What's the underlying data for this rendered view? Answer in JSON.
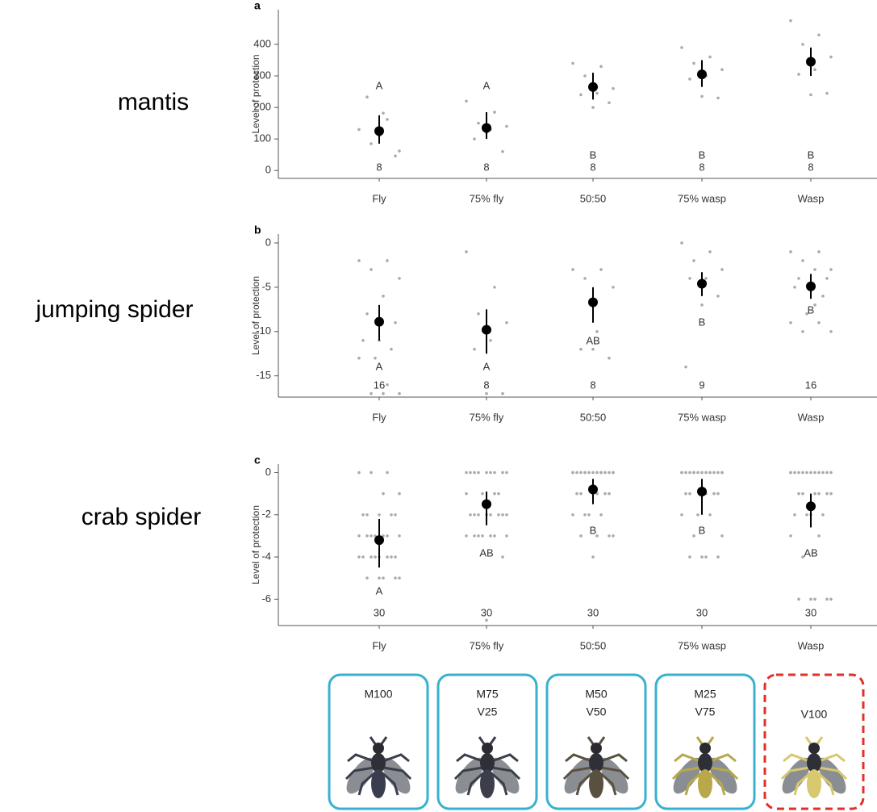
{
  "chart_data": [
    {
      "type": "dot-error",
      "panel": "a",
      "row_label": "mantis",
      "ylabel": "Level of protection",
      "categories": [
        "Fly",
        "75% fly",
        "50:50",
        "75% wasp",
        "Wasp"
      ],
      "means": [
        125,
        135,
        265,
        305,
        345
      ],
      "ci_low": [
        85,
        100,
        225,
        265,
        300
      ],
      "ci_high": [
        175,
        185,
        310,
        350,
        390
      ],
      "letters": [
        "A",
        "A",
        "B",
        "B",
        "B"
      ],
      "n": [
        "8",
        "8",
        "8",
        "8",
        "8"
      ],
      "points": [
        [
          130,
          162,
          85,
          62,
          182,
          233,
          46,
          110
        ],
        [
          220,
          185,
          150,
          140,
          130,
          100,
          60,
          120
        ],
        [
          340,
          330,
          300,
          260,
          245,
          240,
          215,
          200
        ],
        [
          390,
          360,
          340,
          320,
          300,
          290,
          230,
          235
        ],
        [
          475,
          430,
          400,
          360,
          320,
          305,
          245,
          240
        ]
      ],
      "ylim": [
        -25,
        510
      ],
      "yticks": [
        0,
        100,
        200,
        300,
        400
      ]
    },
    {
      "type": "dot-error",
      "panel": "b",
      "row_label": "jumping spider",
      "ylabel": "Level of protection",
      "categories": [
        "Fly",
        "75% fly",
        "50:50",
        "75% wasp",
        "Wasp"
      ],
      "means": [
        -8.9,
        -9.8,
        -6.7,
        -4.6,
        -4.9
      ],
      "ci_low": [
        -11,
        -12.5,
        -9,
        -6,
        -6.3
      ],
      "ci_high": [
        -7,
        -7.5,
        -5,
        -3.3,
        -3.5
      ],
      "letters": [
        "A",
        "A",
        "AB",
        "B",
        "B"
      ],
      "n": [
        "16",
        "8",
        "8",
        "9",
        "16"
      ],
      "points": [
        [
          -2,
          -2,
          -3,
          -4,
          -6,
          -8,
          -9,
          -11,
          -11,
          -12,
          -13,
          -13,
          -16,
          -17,
          -17,
          -17
        ],
        [
          -1,
          -5,
          -8,
          -9,
          -11,
          -12,
          -17,
          -17
        ],
        [
          -3,
          -3,
          -4,
          -5,
          -10,
          -12,
          -13,
          -12
        ],
        [
          0,
          -1,
          -2,
          -3,
          -4,
          -4,
          -6,
          -7,
          -14
        ],
        [
          -1,
          -1,
          -2,
          -3,
          -3,
          -4,
          -4,
          -5,
          -5,
          -6,
          -8,
          -9,
          -9,
          -10,
          -10,
          -7
        ]
      ],
      "ylim": [
        -17.4,
        1
      ],
      "yticks": [
        0,
        -5,
        -10,
        -15
      ]
    },
    {
      "type": "dot-error",
      "panel": "c",
      "row_label": "crab spider",
      "ylabel": "Level of protection",
      "categories": [
        "Fly",
        "75% fly",
        "50:50",
        "75% wasp",
        "Wasp"
      ],
      "means": [
        -3.2,
        -1.5,
        -0.8,
        -0.9,
        -1.6
      ],
      "ci_low": [
        -4.5,
        -2.5,
        -1.5,
        -2,
        -2.6
      ],
      "ci_high": [
        -2.2,
        -0.9,
        -0.3,
        -0.3,
        -1
      ],
      "letters": [
        "A",
        "AB",
        "B",
        "B",
        "AB"
      ],
      "n": [
        "30",
        "30",
        "30",
        "30",
        "30"
      ],
      "points": [
        [
          0,
          0,
          0,
          -1,
          -1,
          -2,
          -2,
          -2,
          -2,
          -2,
          -3,
          -3,
          -3,
          -3,
          -3,
          -3,
          -3,
          -4,
          -4,
          -4,
          -4,
          -4,
          -4,
          -4,
          -4,
          -5,
          -5,
          -5,
          -5,
          -5
        ],
        [
          0,
          0,
          0,
          0,
          0,
          0,
          0,
          0,
          0,
          -1,
          -1,
          -1,
          -1,
          -2,
          -2,
          -2,
          -2,
          -2,
          -2,
          -2,
          -2,
          -3,
          -3,
          -3,
          -3,
          -3,
          -3,
          -3,
          -4,
          -7
        ],
        [
          0,
          0,
          0,
          0,
          0,
          0,
          0,
          0,
          0,
          0,
          0,
          0,
          0,
          0,
          0,
          -1,
          -1,
          -1,
          -1,
          -1,
          -1,
          -2,
          -2,
          -2,
          -2,
          -3,
          -3,
          -3,
          -3,
          -4
        ],
        [
          0,
          0,
          0,
          0,
          0,
          0,
          0,
          0,
          0,
          0,
          0,
          0,
          0,
          0,
          0,
          -1,
          -1,
          -1,
          -1,
          -1,
          -1,
          -2,
          -2,
          -2,
          -3,
          -3,
          -4,
          -4,
          -4,
          -4
        ],
        [
          0,
          0,
          0,
          0,
          0,
          0,
          0,
          0,
          0,
          0,
          0,
          0,
          -1,
          -1,
          -1,
          -1,
          -1,
          -1,
          -2,
          -2,
          -2,
          -2,
          -3,
          -3,
          -4,
          -6,
          -6,
          -6,
          -6,
          -6
        ]
      ],
      "ylim": [
        -7.25,
        0.4
      ],
      "yticks": [
        0,
        -2,
        -4,
        -6
      ]
    }
  ],
  "treatments": [
    {
      "lines": [
        "M100"
      ],
      "border_color": "#3ab0d0",
      "dashed": false
    },
    {
      "lines": [
        "M75",
        "V25"
      ],
      "border_color": "#3ab0d0",
      "dashed": false
    },
    {
      "lines": [
        "M50",
        "V50"
      ],
      "border_color": "#3ab0d0",
      "dashed": false
    },
    {
      "lines": [
        "M25",
        "V75"
      ],
      "border_color": "#3ab0d0",
      "dashed": false
    },
    {
      "lines": [
        "V100"
      ],
      "border_color": "#e0302a",
      "dashed": true
    }
  ]
}
